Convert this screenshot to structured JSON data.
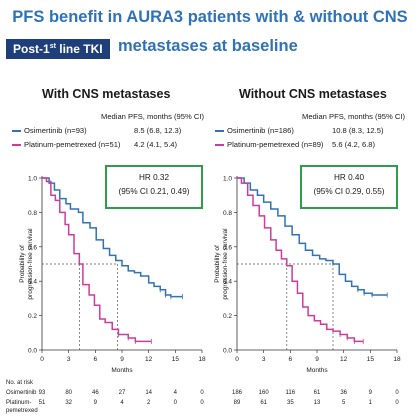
{
  "header": {
    "title_line1": "PFS benefit in AURA3 patients with & without CNS",
    "title_line2": "metastases at baseline",
    "badge_prefix": "Post-1",
    "badge_sup": "st",
    "badge_suffix": " line TKI"
  },
  "colors": {
    "osimertinib": "#2f73b6",
    "platinum": "#cc3d9b",
    "hr_border": "#2e9e4a",
    "title": "#2f72b8"
  },
  "chart_data": [
    {
      "type": "line",
      "title": "With CNS metastases",
      "median_header": "Median PFS, months (95% CI)",
      "xlabel": "Months",
      "ylabel": "Probability of progression-free survival",
      "xlim": [
        0,
        18
      ],
      "ylim": [
        0,
        1.0
      ],
      "xticks": [
        0,
        3,
        6,
        9,
        12,
        15,
        18
      ],
      "yticks": [
        0,
        0.2,
        0.4,
        0.6,
        0.8,
        1.0
      ],
      "legend": [
        {
          "label": "Osimertinib (n=93)",
          "median": "8.5 (6.8, 12.3)",
          "color": "#2f73b6"
        },
        {
          "label": "Platinum-pemetrexed (n=51)",
          "median": "4.2 (4.1, 5.4)",
          "color": "#cc3d9b"
        }
      ],
      "hr_line1": "HR 0.32",
      "hr_line2": "(95% CI 0.21, 0.49)",
      "median_marks": [
        4.2,
        8.5
      ],
      "series": [
        {
          "name": "Osimertinib",
          "color": "#2f73b6",
          "points": [
            [
              0,
              1.0
            ],
            [
              0.8,
              0.97
            ],
            [
              1.4,
              0.93
            ],
            [
              2.0,
              0.88
            ],
            [
              2.7,
              0.85
            ],
            [
              3.2,
              0.82
            ],
            [
              4.1,
              0.8
            ],
            [
              4.6,
              0.74
            ],
            [
              5.4,
              0.71
            ],
            [
              6.1,
              0.64
            ],
            [
              6.9,
              0.59
            ],
            [
              7.6,
              0.55
            ],
            [
              8.3,
              0.52
            ],
            [
              9.0,
              0.49
            ],
            [
              9.7,
              0.46
            ],
            [
              10.4,
              0.45
            ],
            [
              11.1,
              0.43
            ],
            [
              12.0,
              0.39
            ],
            [
              12.6,
              0.37
            ],
            [
              13.3,
              0.35
            ],
            [
              13.9,
              0.32
            ],
            [
              14.5,
              0.31
            ],
            [
              15.8,
              0.31
            ]
          ]
        },
        {
          "name": "Platinum-pemetrexed",
          "color": "#cc3d9b",
          "points": [
            [
              0,
              1.0
            ],
            [
              0.5,
              0.98
            ],
            [
              1.0,
              0.9
            ],
            [
              1.5,
              0.87
            ],
            [
              2.0,
              0.8
            ],
            [
              2.6,
              0.73
            ],
            [
              3.0,
              0.67
            ],
            [
              3.6,
              0.56
            ],
            [
              4.2,
              0.5
            ],
            [
              4.6,
              0.38
            ],
            [
              5.3,
              0.32
            ],
            [
              5.9,
              0.26
            ],
            [
              6.5,
              0.18
            ],
            [
              7.1,
              0.16
            ],
            [
              7.9,
              0.12
            ],
            [
              8.6,
              0.09
            ],
            [
              9.7,
              0.07
            ],
            [
              10.5,
              0.05
            ],
            [
              12.3,
              0.05
            ]
          ]
        }
      ],
      "at_risk_header": "No. at risk",
      "at_risk": [
        {
          "label": "Osimertinib",
          "values": [
            "93",
            "80",
            "46",
            "27",
            "14",
            "4",
            "0"
          ]
        },
        {
          "label": "Platinum-",
          "label2": "pemetrexed",
          "values": [
            "51",
            "32",
            "9",
            "4",
            "2",
            "0",
            "0"
          ]
        }
      ]
    },
    {
      "type": "line",
      "title": "Without CNS metastases",
      "median_header": "Median PFS, months (95% CI)",
      "xlabel": "Months",
      "ylabel": "Probability of progression-free survival",
      "xlim": [
        0,
        18
      ],
      "ylim": [
        0,
        1.0
      ],
      "xticks": [
        0,
        3,
        6,
        9,
        12,
        15,
        18
      ],
      "yticks": [
        0,
        0.2,
        0.4,
        0.6,
        0.8,
        1.0
      ],
      "legend": [
        {
          "label": "Osimertinib (n=186)",
          "median": "10.8 (8.3, 12.5)",
          "color": "#2f73b6"
        },
        {
          "label": "Platinum-pemetrexed (n=89)",
          "median": "5.6 (4.2, 6.8)",
          "color": "#cc3d9b"
        }
      ],
      "hr_line1": "HR 0.40",
      "hr_line2": "(95% CI 0.29, 0.55)",
      "median_marks": [
        5.6,
        10.8
      ],
      "series": [
        {
          "name": "Osimertinib",
          "color": "#2f73b6",
          "points": [
            [
              0,
              1.0
            ],
            [
              0.8,
              0.97
            ],
            [
              1.5,
              0.93
            ],
            [
              2.3,
              0.9
            ],
            [
              3.0,
              0.86
            ],
            [
              3.8,
              0.82
            ],
            [
              4.6,
              0.78
            ],
            [
              5.4,
              0.72
            ],
            [
              6.2,
              0.67
            ],
            [
              7.0,
              0.62
            ],
            [
              7.7,
              0.58
            ],
            [
              8.5,
              0.55
            ],
            [
              9.3,
              0.53
            ],
            [
              10.0,
              0.52
            ],
            [
              10.8,
              0.5
            ],
            [
              11.5,
              0.44
            ],
            [
              12.2,
              0.4
            ],
            [
              12.9,
              0.37
            ],
            [
              13.6,
              0.35
            ],
            [
              14.3,
              0.33
            ],
            [
              15.2,
              0.32
            ],
            [
              16.9,
              0.32
            ]
          ]
        },
        {
          "name": "Platinum-pemetrexed",
          "color": "#cc3d9b",
          "points": [
            [
              0,
              1.0
            ],
            [
              0.5,
              0.97
            ],
            [
              1.2,
              0.9
            ],
            [
              1.8,
              0.84
            ],
            [
              2.5,
              0.78
            ],
            [
              3.1,
              0.71
            ],
            [
              3.8,
              0.64
            ],
            [
              4.4,
              0.58
            ],
            [
              5.0,
              0.53
            ],
            [
              5.6,
              0.49
            ],
            [
              6.2,
              0.4
            ],
            [
              6.8,
              0.33
            ],
            [
              7.4,
              0.25
            ],
            [
              8.0,
              0.2
            ],
            [
              8.7,
              0.17
            ],
            [
              9.4,
              0.15
            ],
            [
              10.1,
              0.12
            ],
            [
              10.8,
              0.11
            ],
            [
              11.6,
              0.09
            ],
            [
              12.4,
              0.07
            ],
            [
              13.2,
              0.05
            ],
            [
              14.2,
              0.05
            ]
          ]
        }
      ],
      "at_risk_header": "",
      "at_risk": [
        {
          "label": "",
          "values": [
            "186",
            "160",
            "116",
            "61",
            "36",
            "9",
            "0"
          ]
        },
        {
          "label": "",
          "values": [
            "89",
            "61",
            "35",
            "13",
            "5",
            "1",
            "0"
          ]
        }
      ]
    }
  ]
}
